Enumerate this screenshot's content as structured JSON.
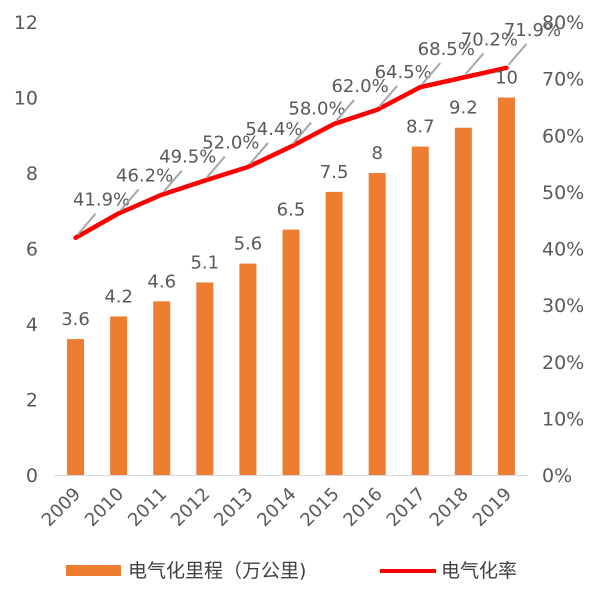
{
  "chart_data": {
    "type": "bar",
    "categories": [
      "2009",
      "2010",
      "2011",
      "2012",
      "2013",
      "2014",
      "2015",
      "2016",
      "2017",
      "2018",
      "2019"
    ],
    "series": [
      {
        "name": "电气化里程（万公里)",
        "type": "bar",
        "axis": "left",
        "values": [
          3.6,
          4.2,
          4.6,
          5.1,
          5.6,
          6.5,
          7.5,
          8,
          8.7,
          9.2,
          10
        ],
        "labels": [
          "3.6",
          "4.2",
          "4.6",
          "5.1",
          "5.6",
          "6.5",
          "7.5",
          "8",
          "8.7",
          "9.2",
          "10"
        ]
      },
      {
        "name": "电气化率",
        "type": "line",
        "axis": "right",
        "values": [
          41.9,
          46.2,
          49.5,
          52.0,
          54.4,
          58.0,
          62.0,
          64.5,
          68.5,
          70.2,
          71.9
        ],
        "labels": [
          "41.9%",
          "46.2%",
          "49.5%",
          "52.0%",
          "54.4%",
          "58.0%",
          "62.0%",
          "64.5%",
          "68.5%",
          "70.2%",
          "71.9%"
        ]
      }
    ],
    "y_left": {
      "lim": [
        0,
        12
      ],
      "ticks": [
        "0",
        "2",
        "4",
        "6",
        "8",
        "10",
        "12"
      ]
    },
    "y_right": {
      "lim": [
        0,
        80
      ],
      "ticks": [
        "0%",
        "10%",
        "20%",
        "30%",
        "40%",
        "50%",
        "60%",
        "70%",
        "80%"
      ]
    },
    "colors": {
      "bar": "#ED7D31",
      "line": "#FF0000",
      "leader": "#A6A6A6",
      "axis": "#D9D9D9"
    },
    "legend_position": "bottom",
    "grid": false
  }
}
